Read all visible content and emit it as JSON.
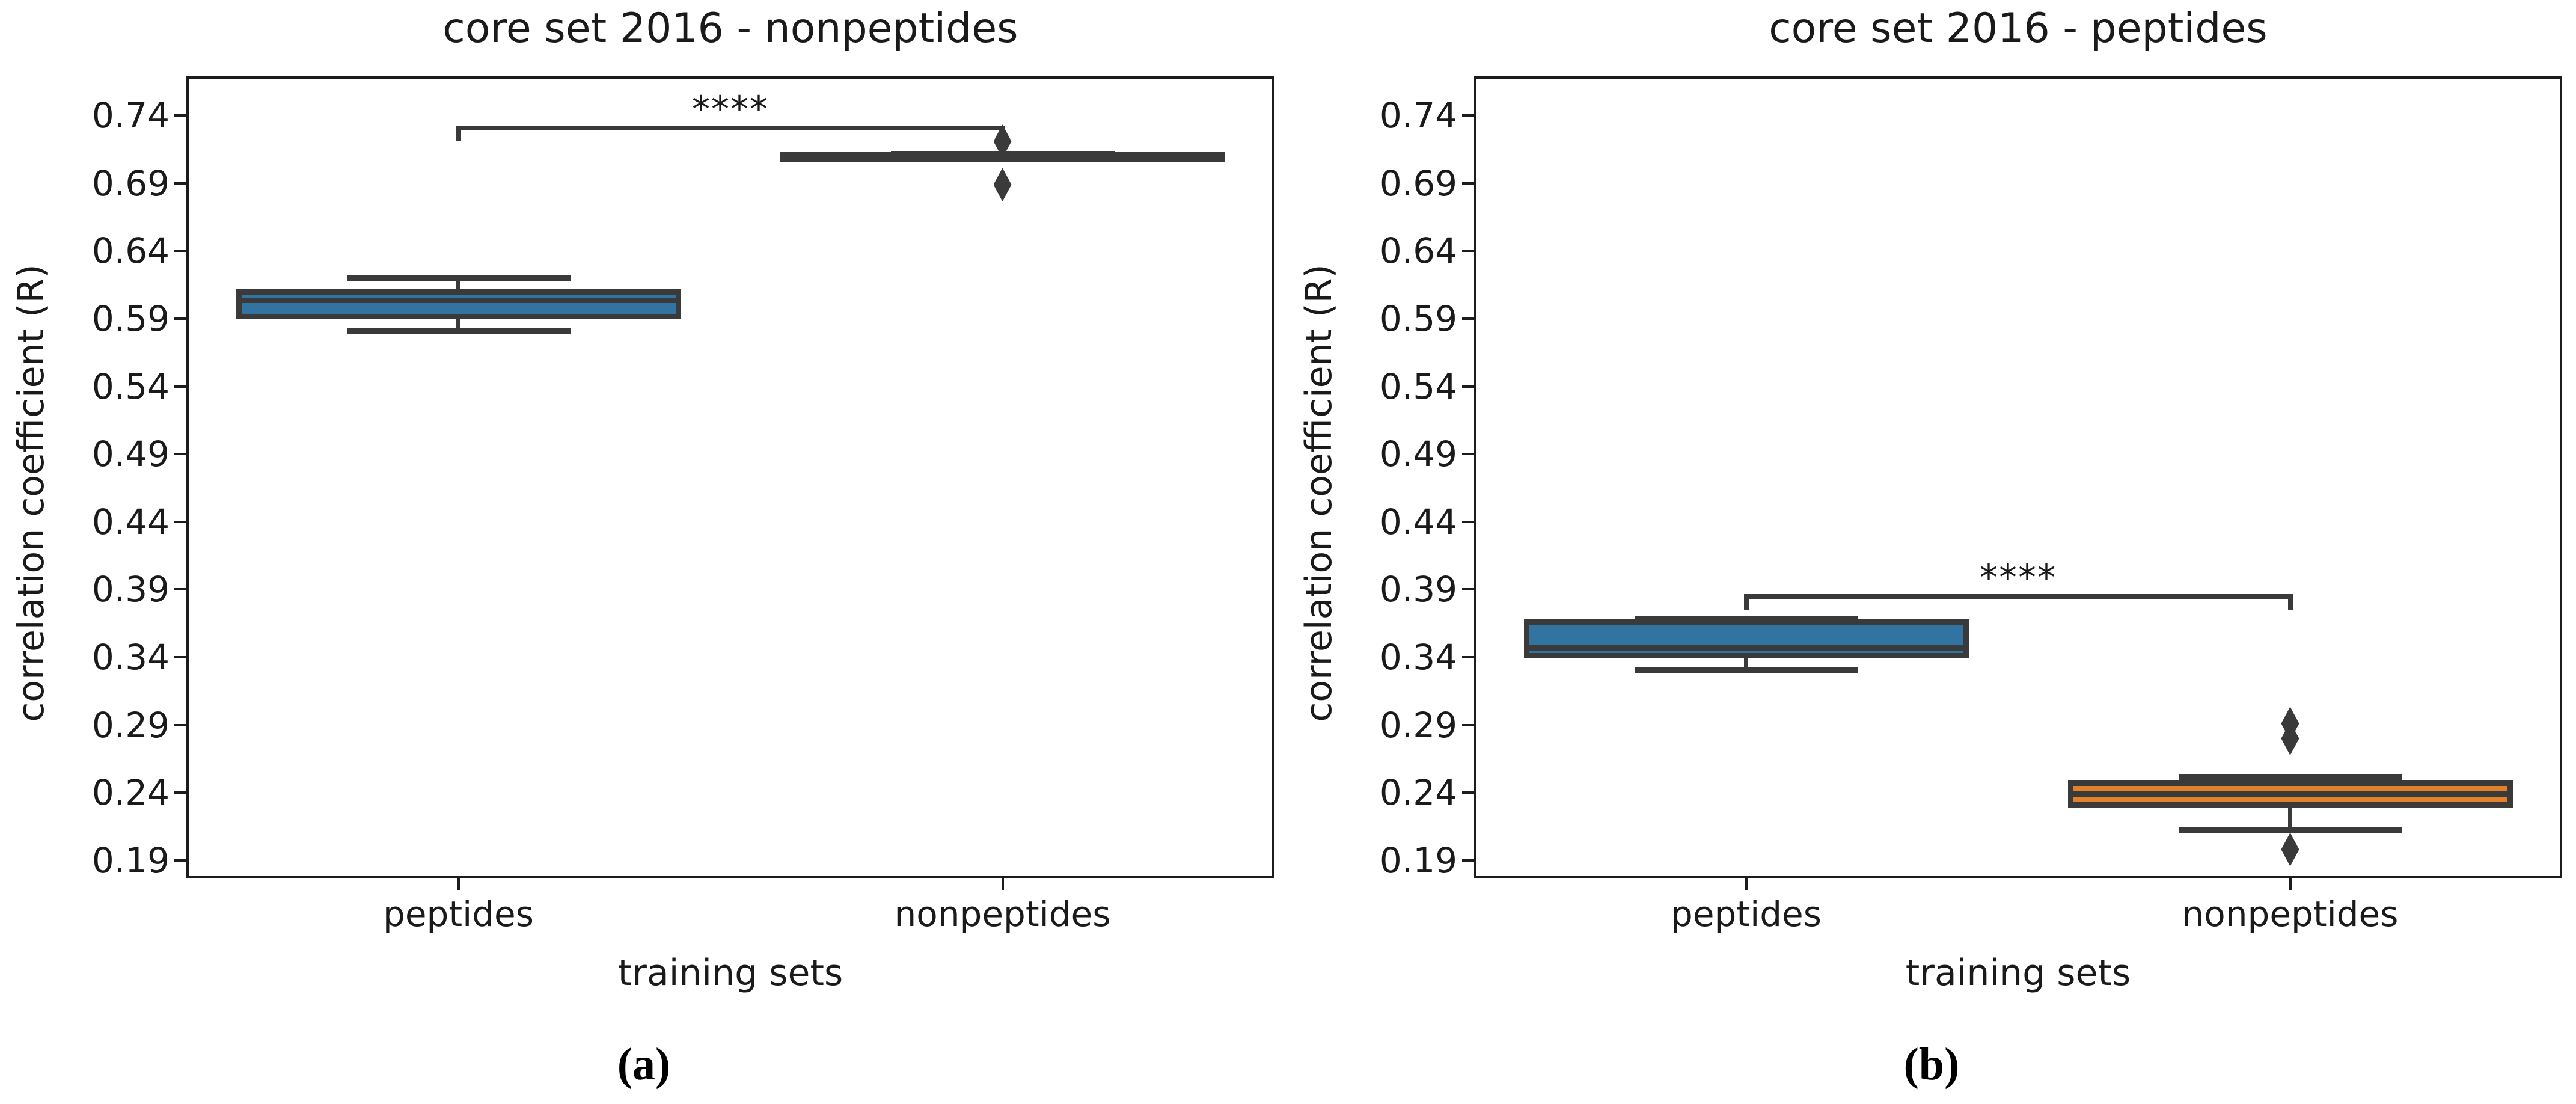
{
  "figure": {
    "kind": "two-panel boxplot comparison",
    "background": "#ffffff",
    "colors": {
      "box_blue": "#3274a1",
      "box_orange": "#e1812c",
      "line_dark": "#3a3a3a",
      "spine": "#1c1c1c",
      "text": "#1a1a1a"
    }
  },
  "chart_data": [
    {
      "type": "box",
      "panel": "a",
      "caption": "(a)",
      "title": "core set 2016 - nonpeptides",
      "xlabel": "training sets",
      "ylabel": "correlation coefficient (R)",
      "categories": [
        "peptides",
        "nonpeptides"
      ],
      "ylim": [
        0.177,
        0.769
      ],
      "yticks": [
        0.74,
        0.69,
        0.64,
        0.59,
        0.54,
        0.49,
        0.44,
        0.39,
        0.34,
        0.29,
        0.24,
        0.19
      ],
      "grid": false,
      "legend": null,
      "boxes": [
        {
          "category": "peptides",
          "fill_color": "#3274a1",
          "whisker_low": 0.581,
          "q1": 0.5915,
          "median": 0.6035,
          "q3": 0.61,
          "whisker_high": 0.62,
          "outliers": []
        },
        {
          "category": "nonpeptides",
          "fill_color": "#e1812c",
          "whisker_low": 0.7085,
          "q1": 0.7085,
          "median": 0.71,
          "q3": 0.7115,
          "whisker_high": 0.7115,
          "outliers": [
            0.721,
            0.689
          ]
        }
      ],
      "significance": {
        "label": "****",
        "between": [
          "peptides",
          "nonpeptides"
        ],
        "bar_y": 0.731,
        "label_y": 0.748
      }
    },
    {
      "type": "box",
      "panel": "b",
      "caption": "(b)",
      "title": "core set 2016 - peptides",
      "xlabel": "training sets",
      "ylabel": "correlation coefficient (R)",
      "categories": [
        "peptides",
        "nonpeptides"
      ],
      "ylim": [
        0.177,
        0.769
      ],
      "yticks": [
        0.74,
        0.69,
        0.64,
        0.59,
        0.54,
        0.49,
        0.44,
        0.39,
        0.34,
        0.29,
        0.24,
        0.19
      ],
      "grid": false,
      "legend": null,
      "boxes": [
        {
          "category": "peptides",
          "fill_color": "#3274a1",
          "whisker_low": 0.33,
          "q1": 0.341,
          "median": 0.347,
          "q3": 0.366,
          "whisker_high": 0.368,
          "outliers": []
        },
        {
          "category": "nonpeptides",
          "fill_color": "#e1812c",
          "whisker_low": 0.212,
          "q1": 0.231,
          "median": 0.239,
          "q3": 0.247,
          "whisker_high": 0.251,
          "outliers": [
            0.291,
            0.28,
            0.198
          ]
        }
      ],
      "significance": {
        "label": "****",
        "between": [
          "peptides",
          "nonpeptides"
        ],
        "bar_y": 0.385,
        "label_y": 0.402
      }
    }
  ]
}
